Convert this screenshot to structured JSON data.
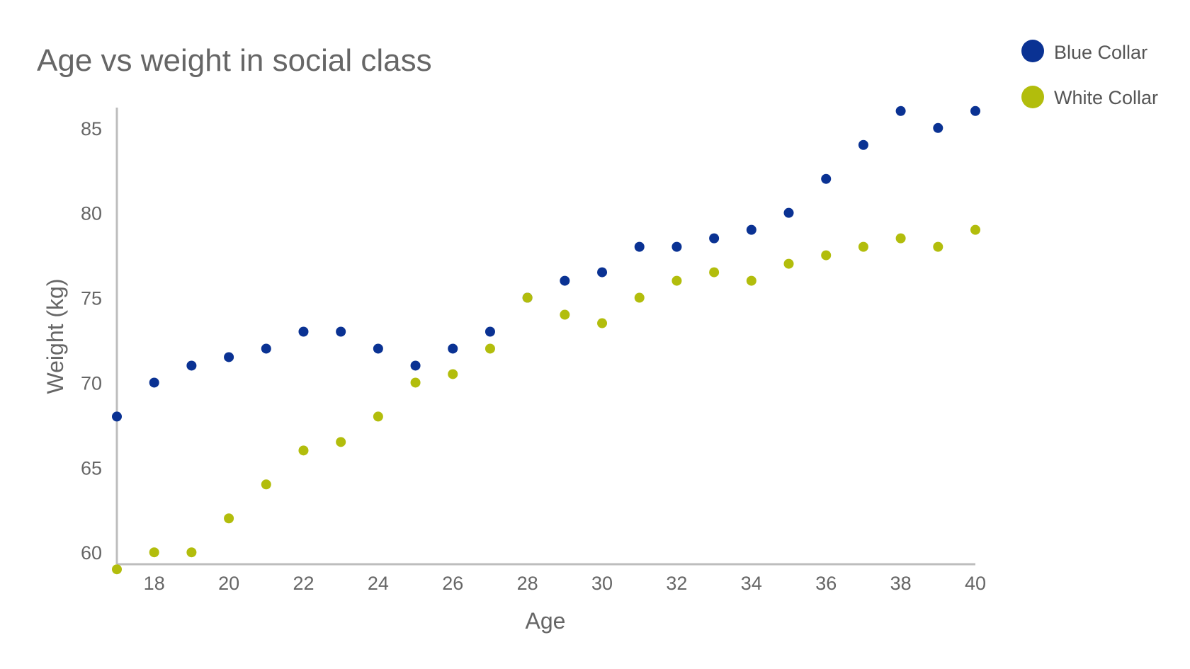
{
  "chart_data": {
    "type": "scatter",
    "title": "Age vs weight in social class",
    "xlabel": "Age",
    "ylabel": "Weight (kg)",
    "xlim": [
      17,
      40
    ],
    "ylim": [
      59.3,
      86.2
    ],
    "x_ticks": [
      18,
      20,
      22,
      24,
      26,
      28,
      30,
      32,
      34,
      36,
      38,
      40
    ],
    "y_ticks": [
      60,
      65,
      70,
      75,
      80,
      85
    ],
    "grid": false,
    "legend_position": "top-right",
    "series": [
      {
        "name": "Blue Collar",
        "color": "#0a3293",
        "x": [
          17,
          18,
          19,
          20,
          21,
          22,
          23,
          24,
          25,
          26,
          27,
          28,
          29,
          30,
          31,
          32,
          33,
          34,
          35,
          36,
          37,
          38,
          39,
          40
        ],
        "y": [
          68,
          70,
          71,
          71.5,
          72,
          73,
          73,
          72,
          71,
          72,
          73,
          75,
          76,
          76.5,
          78,
          78,
          78.5,
          79,
          80,
          82,
          84,
          86,
          85,
          86
        ]
      },
      {
        "name": "White Collar",
        "color": "#b2bd0c",
        "x": [
          17,
          18,
          19,
          20,
          21,
          22,
          23,
          24,
          25,
          26,
          27,
          28,
          29,
          30,
          31,
          32,
          33,
          34,
          35,
          36,
          37,
          38,
          39,
          40
        ],
        "y": [
          59,
          60,
          60,
          62,
          64,
          66,
          66.5,
          68,
          70,
          70.5,
          72,
          75,
          74,
          73.5,
          75,
          76,
          76.5,
          76,
          77,
          77.5,
          78,
          78.5,
          78,
          79
        ]
      }
    ]
  }
}
